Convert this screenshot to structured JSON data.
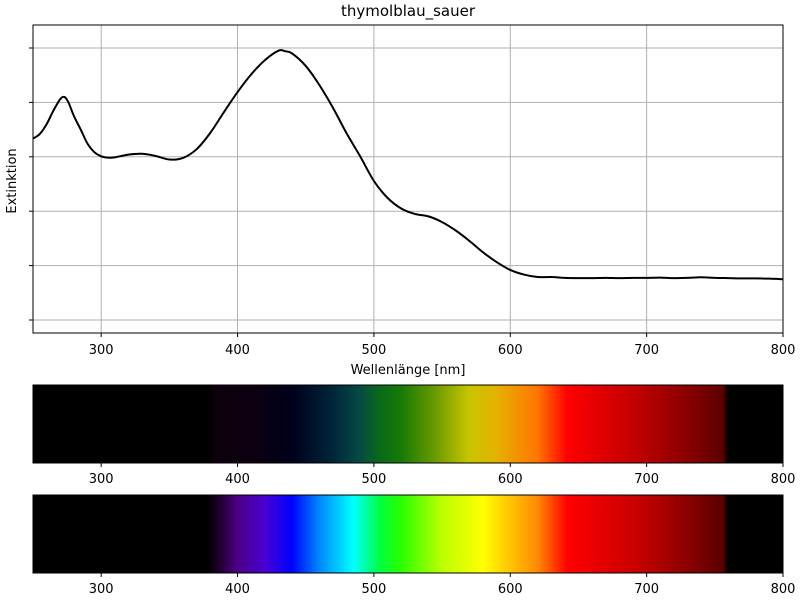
{
  "chart_data": [
    {
      "type": "line",
      "title": "thymolblau_sauer",
      "xlabel": "Wellenlänge [nm]",
      "ylabel": "Extinktion",
      "xlim": [
        250,
        800
      ],
      "ylim": [
        0,
        1
      ],
      "x_ticks": [
        "300",
        "400",
        "500",
        "600",
        "700",
        "800"
      ],
      "y_tick_count": 6,
      "y_tick_labels_shown": false,
      "grid": true,
      "series": [
        {
          "color": "#000000",
          "x": [
            250,
            255,
            260,
            265,
            270,
            273,
            276,
            280,
            285,
            290,
            295,
            300,
            305,
            310,
            320,
            330,
            340,
            350,
            360,
            370,
            380,
            390,
            400,
            410,
            420,
            430,
            435,
            440,
            450,
            460,
            470,
            480,
            490,
            500,
            510,
            520,
            530,
            540,
            550,
            560,
            570,
            580,
            590,
            600,
            610,
            620,
            630,
            640,
            650,
            660,
            670,
            680,
            690,
            700,
            710,
            720,
            730,
            740,
            750,
            760,
            770,
            780,
            790,
            800
          ],
          "y": [
            0.667,
            0.684,
            0.72,
            0.77,
            0.812,
            0.82,
            0.8,
            0.75,
            0.7,
            0.648,
            0.617,
            0.602,
            0.597,
            0.598,
            0.608,
            0.611,
            0.603,
            0.59,
            0.596,
            0.628,
            0.688,
            0.764,
            0.838,
            0.903,
            0.955,
            0.99,
            0.988,
            0.98,
            0.934,
            0.864,
            0.78,
            0.686,
            0.601,
            0.511,
            0.449,
            0.41,
            0.39,
            0.381,
            0.36,
            0.329,
            0.291,
            0.249,
            0.213,
            0.184,
            0.167,
            0.158,
            0.158,
            0.155,
            0.154,
            0.154,
            0.155,
            0.154,
            0.155,
            0.155,
            0.156,
            0.154,
            0.155,
            0.157,
            0.155,
            0.154,
            0.153,
            0.153,
            0.152,
            0.15
          ]
        }
      ]
    },
    {
      "type": "other",
      "description_role": "absorbed-light color band",
      "xlim": [
        250,
        800
      ],
      "x_ticks": [
        "300",
        "400",
        "500",
        "600",
        "700",
        "800"
      ],
      "stops": [
        {
          "x": 250,
          "color": "#000000"
        },
        {
          "x": 378,
          "color": "#000000"
        },
        {
          "x": 383,
          "color": "#0b000b"
        },
        {
          "x": 410,
          "color": "#0c0010"
        },
        {
          "x": 440,
          "color": "#00001a"
        },
        {
          "x": 470,
          "color": "#00263a"
        },
        {
          "x": 490,
          "color": "#074a44"
        },
        {
          "x": 505,
          "color": "#0a6a1a"
        },
        {
          "x": 520,
          "color": "#177a04"
        },
        {
          "x": 545,
          "color": "#6a9c00"
        },
        {
          "x": 570,
          "color": "#c9c500"
        },
        {
          "x": 590,
          "color": "#e4b200"
        },
        {
          "x": 620,
          "color": "#ff7500"
        },
        {
          "x": 642,
          "color": "#ff0000"
        },
        {
          "x": 690,
          "color": "#c40000"
        },
        {
          "x": 730,
          "color": "#8a0000"
        },
        {
          "x": 756,
          "color": "#5c0000"
        },
        {
          "x": 760,
          "color": "#000000"
        },
        {
          "x": 800,
          "color": "#000000"
        }
      ]
    },
    {
      "type": "other",
      "description_role": "visible spectrum color band",
      "xlim": [
        250,
        800
      ],
      "x_ticks": [
        "300",
        "400",
        "500",
        "600",
        "700",
        "800"
      ],
      "stops": [
        {
          "x": 250,
          "color": "#000000"
        },
        {
          "x": 378,
          "color": "#000000"
        },
        {
          "x": 386,
          "color": "#1c0026"
        },
        {
          "x": 400,
          "color": "#4b0083"
        },
        {
          "x": 420,
          "color": "#4a00d2"
        },
        {
          "x": 440,
          "color": "#0000ff"
        },
        {
          "x": 460,
          "color": "#0088ff"
        },
        {
          "x": 485,
          "color": "#00ffff"
        },
        {
          "x": 505,
          "color": "#00ff40"
        },
        {
          "x": 520,
          "color": "#2aff00"
        },
        {
          "x": 550,
          "color": "#bbff00"
        },
        {
          "x": 580,
          "color": "#ffff00"
        },
        {
          "x": 620,
          "color": "#ff8a00"
        },
        {
          "x": 642,
          "color": "#ff0000"
        },
        {
          "x": 690,
          "color": "#cc0000"
        },
        {
          "x": 730,
          "color": "#8c0000"
        },
        {
          "x": 756,
          "color": "#5a0000"
        },
        {
          "x": 760,
          "color": "#000000"
        },
        {
          "x": 800,
          "color": "#000000"
        }
      ]
    }
  ]
}
